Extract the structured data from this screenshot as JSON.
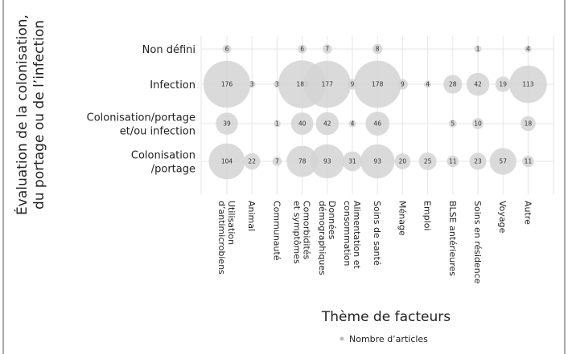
{
  "chart_data": {
    "type": "bubble",
    "categories": [
      [
        "Utilisation",
        "d’antimicrobiens"
      ],
      [
        "Animal"
      ],
      [
        "Communauté"
      ],
      [
        "Comorbidités",
        "et symptômes"
      ],
      [
        "Données",
        "démographiques"
      ],
      [
        "Alimentation et",
        "consommation"
      ],
      [
        "Soins de santé"
      ],
      [
        "Ménage"
      ],
      [
        "Emploi"
      ],
      [
        "BLSE antérieures"
      ],
      [
        "Soins en résidence"
      ],
      [
        "Voyage"
      ],
      [
        "Autre"
      ]
    ],
    "rows": [
      {
        "label": [
          "Non défini"
        ],
        "values": [
          6,
          null,
          null,
          6,
          7,
          null,
          8,
          null,
          null,
          null,
          1,
          null,
          4
        ]
      },
      {
        "label": [
          "Infection"
        ],
        "values": [
          176,
          3,
          3,
          183,
          177,
          9,
          178,
          9,
          4,
          28,
          42,
          19,
          113
        ]
      },
      {
        "label": [
          "Colonisation/portage",
          "et/ou infection"
        ],
        "values": [
          39,
          null,
          1,
          40,
          42,
          4,
          46,
          null,
          null,
          5,
          10,
          null,
          18
        ]
      },
      {
        "label": [
          "Colonisation",
          "/portage"
        ],
        "values": [
          104,
          22,
          7,
          78,
          93,
          31,
          93,
          20,
          25,
          11,
          23,
          57,
          11
        ]
      }
    ],
    "xlabel": "Thème de facteurs",
    "ylabel": [
      "Évaluation de la colonisation,",
      "du portage ou de l’infection"
    ],
    "legend": "Nombre d’articles",
    "color": "#d4d4d4",
    "grid": true
  }
}
